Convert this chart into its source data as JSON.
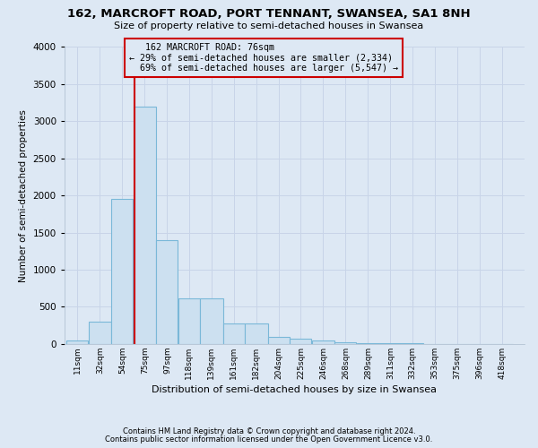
{
  "title": "162, MARCROFT ROAD, PORT TENNANT, SWANSEA, SA1 8NH",
  "subtitle": "Size of property relative to semi-detached houses in Swansea",
  "xlabel": "Distribution of semi-detached houses by size in Swansea",
  "ylabel": "Number of semi-detached properties",
  "footer_line1": "Contains HM Land Registry data © Crown copyright and database right 2024.",
  "footer_line2": "Contains public sector information licensed under the Open Government Licence v3.0.",
  "annotation_title": "162 MARCROFT ROAD: 76sqm",
  "annotation_line1": "← 29% of semi-detached houses are smaller (2,334)",
  "annotation_line2": "69% of semi-detached houses are larger (5,547) →",
  "property_size_sqm": 76,
  "bar_left_edges": [
    11,
    32,
    54,
    75,
    97,
    118,
    139,
    161,
    182,
    204,
    225,
    246,
    268,
    289,
    311,
    332,
    353,
    375,
    396,
    418
  ],
  "bar_right_edges": [
    32,
    54,
    75,
    97,
    118,
    139,
    161,
    182,
    204,
    225,
    246,
    268,
    289,
    311,
    332,
    353,
    375,
    396,
    418,
    439
  ],
  "bar_heights": [
    50,
    300,
    1950,
    3200,
    1400,
    620,
    620,
    275,
    275,
    95,
    70,
    45,
    28,
    10,
    5,
    5,
    4,
    2,
    2,
    2
  ],
  "bar_color": "#cce0f0",
  "bar_edge_color": "#7ab8d8",
  "marker_line_color": "#cc0000",
  "annotation_box_edge_color": "#cc0000",
  "grid_color": "#c8d4e8",
  "background_color": "#dde8f4",
  "ylim": [
    0,
    4000
  ],
  "yticks": [
    0,
    500,
    1000,
    1500,
    2000,
    2500,
    3000,
    3500,
    4000
  ]
}
